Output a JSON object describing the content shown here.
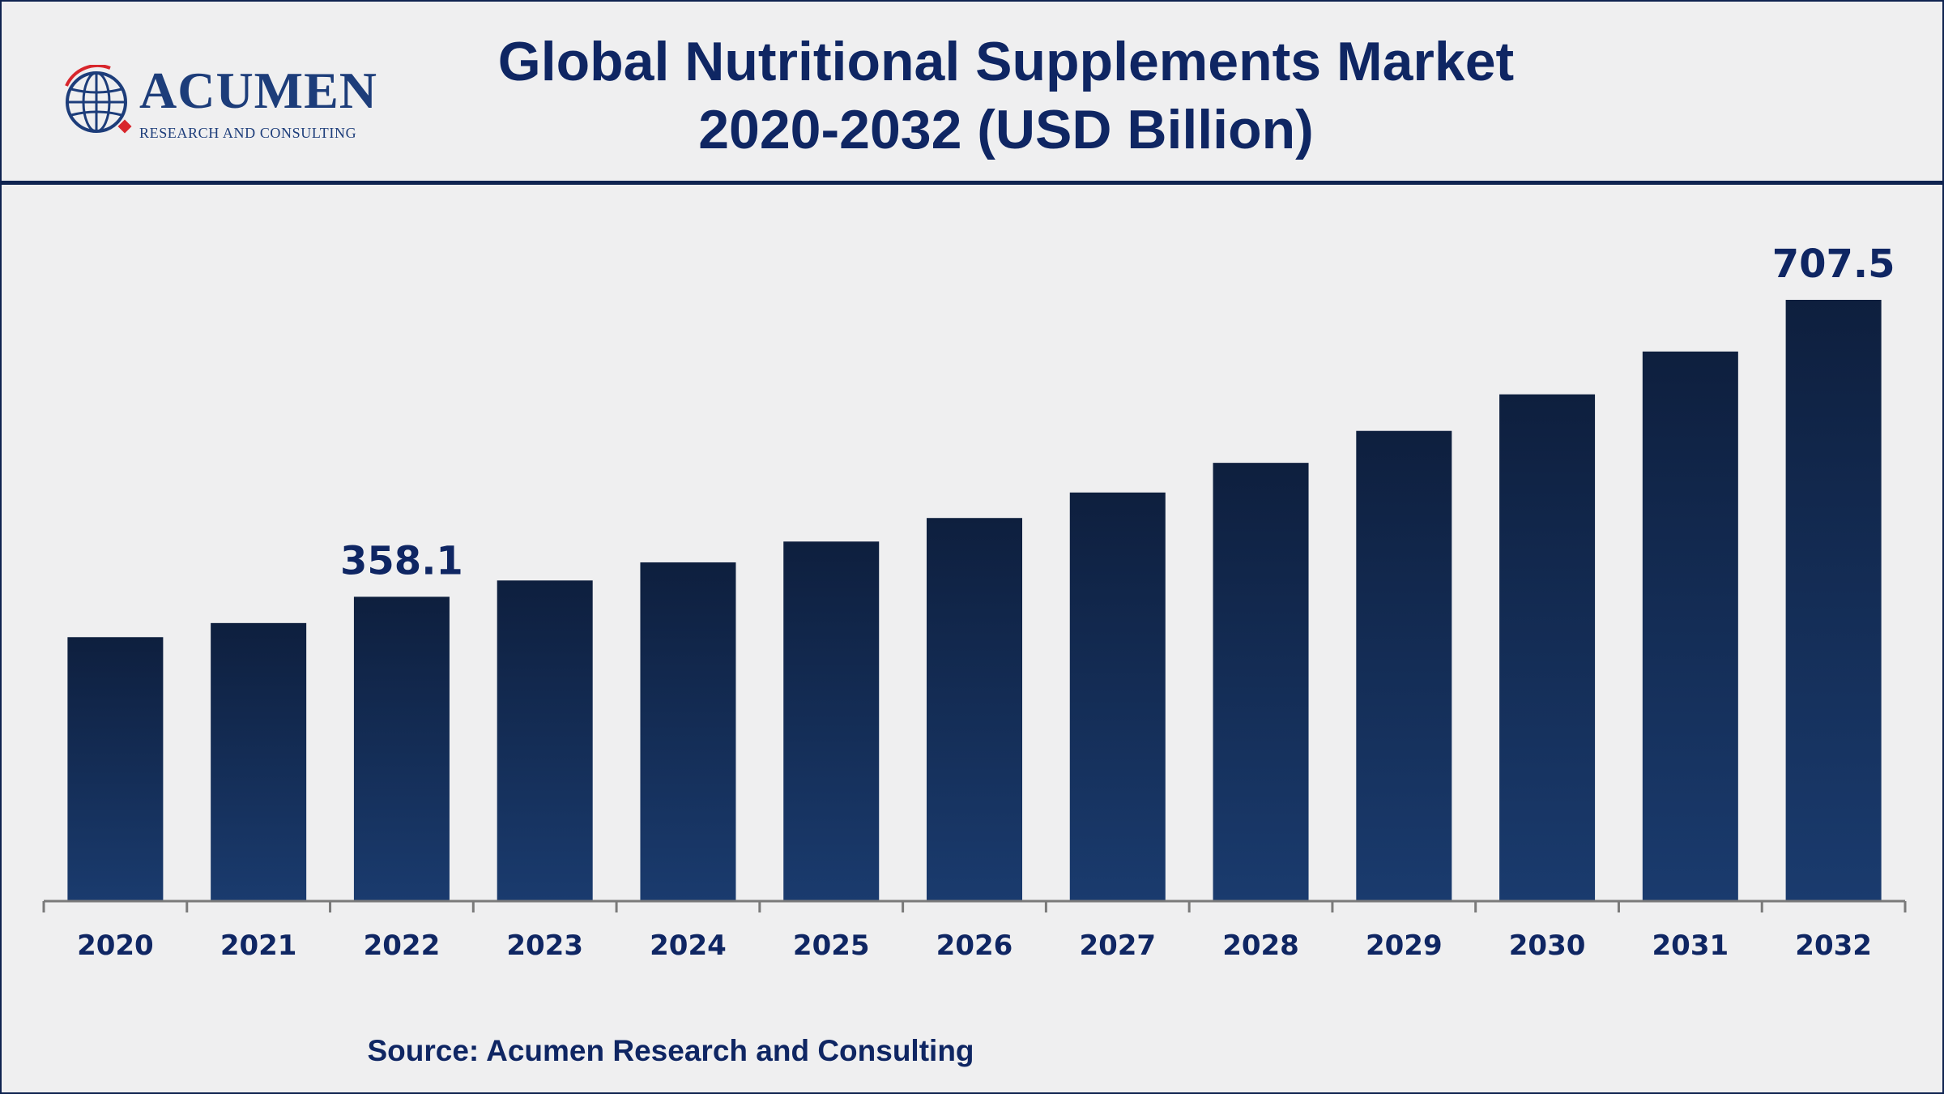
{
  "header": {
    "title_line1": "Global Nutritional Supplements Market",
    "title_line2": "2020-2032 (USD Billion)"
  },
  "logo": {
    "name": "ACUMEN",
    "tagline": "RESEARCH AND CONSULTING",
    "icon": "globe-icon"
  },
  "colors": {
    "bar_top": "#0e1f3e",
    "bar_bottom": "#1a3b6e",
    "text": "#0f2663",
    "axis": "#7a7a7a",
    "accent_red": "#d8262c"
  },
  "chart_data": {
    "type": "bar",
    "title": "Global Nutritional Supplements Market 2020-2032 (USD Billion)",
    "categories": [
      "2020",
      "2021",
      "2022",
      "2023",
      "2024",
      "2025",
      "2026",
      "2027",
      "2028",
      "2029",
      "2030",
      "2031",
      "2032"
    ],
    "values": [
      310.6,
      327.2,
      358.1,
      377.3,
      398.6,
      423.1,
      450.8,
      480.8,
      515.7,
      553.3,
      596.3,
      646.7,
      707.5
    ],
    "data_labels": {
      "2022": "358.1",
      "2032": "707.5"
    },
    "xlabel": "",
    "ylabel": "",
    "ylim": [
      0,
      757
    ],
    "grid": false,
    "legend": "none"
  },
  "footer": {
    "source": "Source: Acumen Research and Consulting"
  }
}
